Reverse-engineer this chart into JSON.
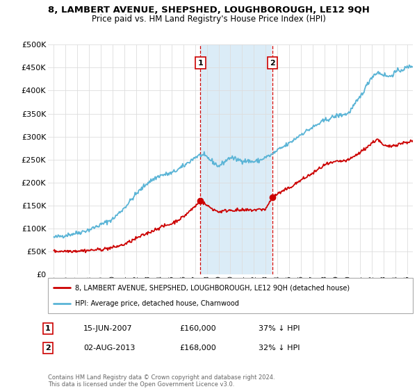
{
  "title": "8, LAMBERT AVENUE, SHEPSHED, LOUGHBOROUGH, LE12 9QH",
  "subtitle": "Price paid vs. HM Land Registry's House Price Index (HPI)",
  "hpi_label": "HPI: Average price, detached house, Charnwood",
  "price_label": "8, LAMBERT AVENUE, SHEPSHED, LOUGHBOROUGH, LE12 9QH (detached house)",
  "transaction1": {
    "date": "15-JUN-2007",
    "price": 160000,
    "hpi_pct": "37% ↓ HPI",
    "label": "1"
  },
  "transaction2": {
    "date": "02-AUG-2013",
    "price": 168000,
    "hpi_pct": "32% ↓ HPI",
    "label": "2"
  },
  "footer": "Contains HM Land Registry data © Crown copyright and database right 2024.\nThis data is licensed under the Open Government Licence v3.0.",
  "hpi_color": "#5ab4d6",
  "price_color": "#cc0000",
  "shade_color": "#cce5f5",
  "ylim": [
    0,
    500000
  ],
  "yticks": [
    0,
    50000,
    100000,
    150000,
    200000,
    250000,
    300000,
    350000,
    400000,
    450000,
    500000
  ],
  "xlim_start": 1994.5,
  "xlim_end": 2025.5,
  "background_color": "#ffffff",
  "grid_color": "#dddddd",
  "t1_year_dec": 2007.45,
  "t2_year_dec": 2013.58,
  "t1_price": 160000,
  "t2_price": 168000
}
